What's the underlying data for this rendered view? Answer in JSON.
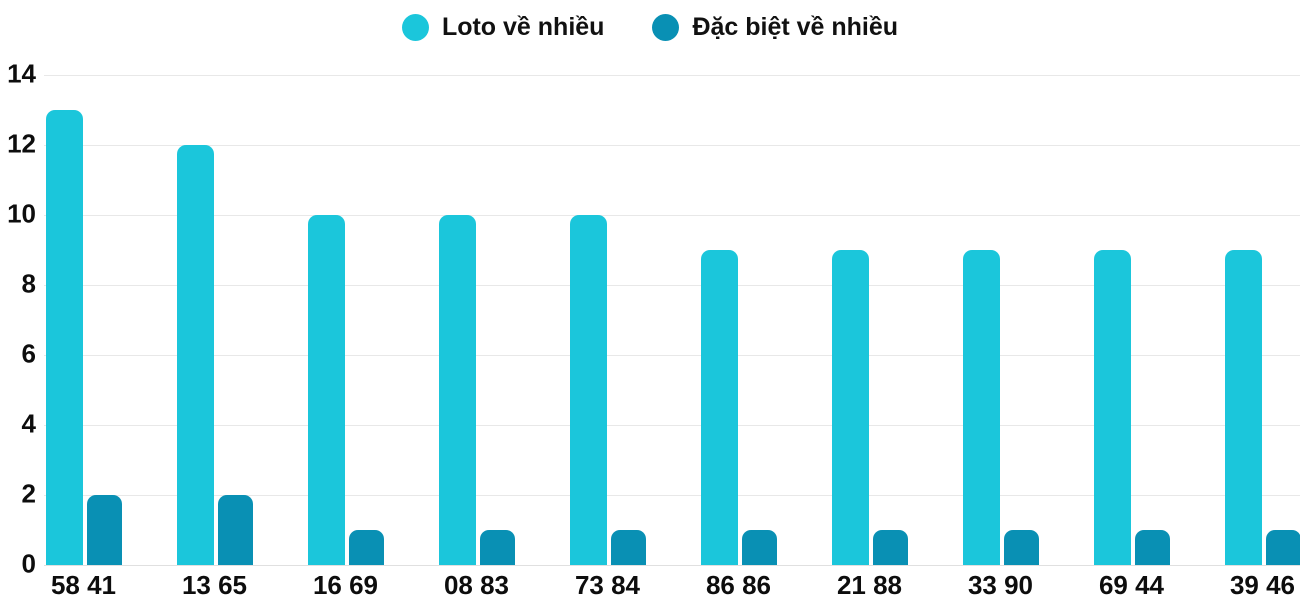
{
  "chart_data": {
    "type": "bar",
    "title": "",
    "xlabel": "",
    "ylabel": "",
    "categories": [
      "58 41",
      "13 65",
      "16 69",
      "08 83",
      "73 84",
      "86 86",
      "21 88",
      "33 90",
      "69 44",
      "39 46"
    ],
    "series": [
      {
        "name": "Loto về nhiều",
        "color": "#1bc6db",
        "values": [
          13,
          12,
          10,
          10,
          10,
          9,
          9,
          9,
          9,
          9
        ]
      },
      {
        "name": "Đặc biệt về nhiều",
        "color": "#0990b4",
        "values": [
          2,
          2,
          1,
          1,
          1,
          1,
          1,
          1,
          1,
          1
        ]
      }
    ],
    "ylim": [
      0,
      14
    ],
    "yticks": [
      0,
      2,
      4,
      6,
      8,
      10,
      12,
      14
    ],
    "grid": "horizontal",
    "grid_color": "#e8e8e8",
    "baseline_color": "#e0e0e0",
    "legend_position": "top-center",
    "background": "#ffffff",
    "text_color": "#0d0d0d"
  }
}
